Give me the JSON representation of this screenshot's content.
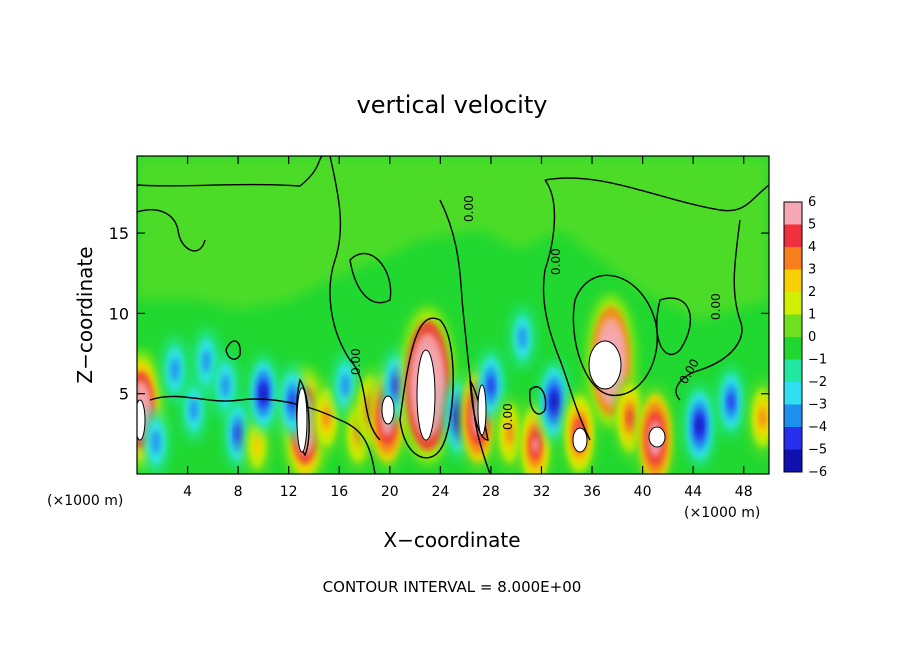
{
  "chart_data": {
    "type": "heatmap",
    "title": "vertical velocity",
    "xlabel": "X−coordinate",
    "ylabel": "Z−coordinate",
    "x_unit": "(×1000 m)",
    "z_unit": "(×1000 m)",
    "xlim": [
      0,
      50
    ],
    "zlim": [
      0,
      19.8
    ],
    "x_ticks": [
      4,
      8,
      12,
      16,
      20,
      24,
      28,
      32,
      36,
      40,
      44,
      48
    ],
    "z_ticks": [
      5,
      10,
      15
    ],
    "footer": "CONTOUR INTERVAL = 8.000E+00",
    "contour_label": "0.00",
    "colorbar": {
      "levels": [
        6,
        5,
        4,
        3,
        2,
        1,
        0,
        -1,
        -2,
        -3,
        -4,
        -5,
        -6
      ],
      "colors": [
        "#f5a8b4",
        "#f0303c",
        "#f8801c",
        "#f8d000",
        "#d0f000",
        "#70e020",
        "#20d830",
        "#20e8a0",
        "#30e0f0",
        "#2090f0",
        "#2830f0",
        "#1010b0",
        "#6a1aa8"
      ]
    },
    "features": [
      {
        "x": 0.3,
        "z": 4.0,
        "w": 9,
        "kind": "up"
      },
      {
        "x": 1.5,
        "z": 2.0,
        "w": -3,
        "kind": "down"
      },
      {
        "x": 3.0,
        "z": 6.5,
        "w": -3,
        "kind": "down"
      },
      {
        "x": 4.5,
        "z": 4.0,
        "w": -2.5,
        "kind": "down"
      },
      {
        "x": 5.5,
        "z": 7.0,
        "w": -3,
        "kind": "down"
      },
      {
        "x": 7.0,
        "z": 5.5,
        "w": -3,
        "kind": "down"
      },
      {
        "x": 8.0,
        "z": 2.5,
        "w": -3.5,
        "kind": "down"
      },
      {
        "x": 9.5,
        "z": 1.8,
        "w": 3,
        "kind": "up"
      },
      {
        "x": 10.0,
        "z": 5.0,
        "w": -4.5,
        "kind": "down"
      },
      {
        "x": 13.3,
        "z": 3.0,
        "w": 9,
        "kind": "up"
      },
      {
        "x": 12.3,
        "z": 4.5,
        "w": -4,
        "kind": "down"
      },
      {
        "x": 15.0,
        "z": 3.5,
        "w": 4,
        "kind": "up"
      },
      {
        "x": 16.5,
        "z": 5.5,
        "w": -3,
        "kind": "down"
      },
      {
        "x": 17.5,
        "z": 2.5,
        "w": 4,
        "kind": "up"
      },
      {
        "x": 18.5,
        "z": 4.0,
        "w": 5,
        "kind": "up"
      },
      {
        "x": 19.8,
        "z": 3.5,
        "w": 8,
        "kind": "up"
      },
      {
        "x": 20.5,
        "z": 5.5,
        "w": -4,
        "kind": "down"
      },
      {
        "x": 23.0,
        "z": 5.5,
        "w": 14,
        "kind": "up"
      },
      {
        "x": 25.5,
        "z": 3.5,
        "w": -5,
        "kind": "down"
      },
      {
        "x": 27.0,
        "z": 3.5,
        "w": 8,
        "kind": "up"
      },
      {
        "x": 28.0,
        "z": 5.5,
        "w": -4,
        "kind": "down"
      },
      {
        "x": 29.5,
        "z": 2.5,
        "w": 4,
        "kind": "up"
      },
      {
        "x": 31.5,
        "z": 1.8,
        "w": 6,
        "kind": "up"
      },
      {
        "x": 30.5,
        "z": 8.5,
        "w": -2.5,
        "kind": "down"
      },
      {
        "x": 33.0,
        "z": 4.5,
        "w": -5,
        "kind": "down"
      },
      {
        "x": 35.0,
        "z": 2.5,
        "w": 6,
        "kind": "up"
      },
      {
        "x": 37.5,
        "z": 7.0,
        "w": 11,
        "kind": "up"
      },
      {
        "x": 39.0,
        "z": 3.5,
        "w": 5,
        "kind": "up"
      },
      {
        "x": 41.0,
        "z": 2.2,
        "w": 8,
        "kind": "up"
      },
      {
        "x": 44.5,
        "z": 3.0,
        "w": -5,
        "kind": "down"
      },
      {
        "x": 47.0,
        "z": 4.5,
        "w": -3.5,
        "kind": "down"
      },
      {
        "x": 49.5,
        "z": 3.5,
        "w": 4,
        "kind": "up"
      }
    ]
  }
}
